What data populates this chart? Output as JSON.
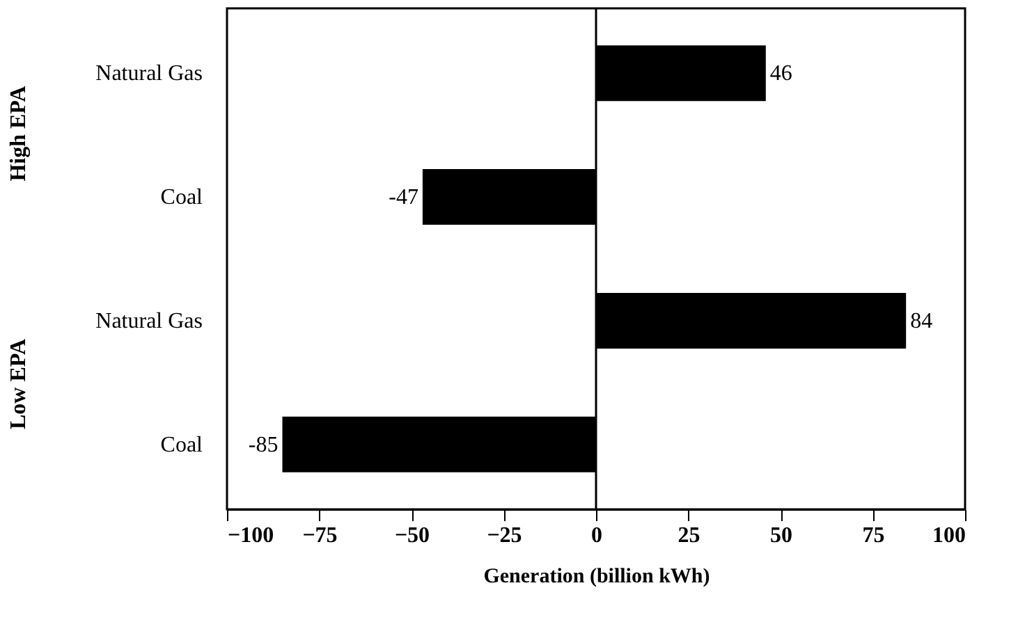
{
  "chart_data": {
    "type": "bar",
    "orientation": "horizontal",
    "categories": [
      "Natural Gas",
      "Coal",
      "Natural Gas",
      "Coal"
    ],
    "values": [
      46,
      -47,
      84,
      -85
    ],
    "color": "#000000",
    "data_labels": true,
    "xlabel": "Generation (billion kWh)",
    "xlim": [
      -100,
      100
    ],
    "xticks": [
      -100,
      -75,
      -50,
      -25,
      0,
      25,
      50,
      75,
      100
    ],
    "annotations": [
      "High EPA",
      "Low EPA"
    ]
  }
}
